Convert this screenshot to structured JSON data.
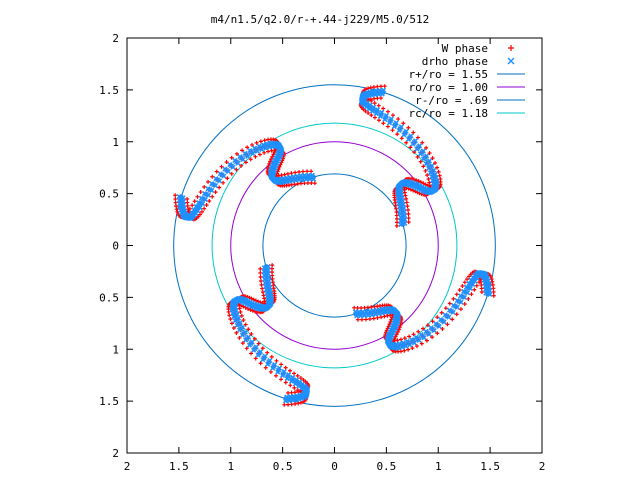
{
  "chart_data": {
    "type": "scatter",
    "title": "m4/n1.5/q2.0/r-+.44-j229/M5.0/512",
    "xlabel": "",
    "ylabel": "",
    "xlim": [
      -2,
      2
    ],
    "ylim": [
      -2,
      2
    ],
    "x_tick_values": [
      -2,
      -1.5,
      -1,
      -0.5,
      0,
      0.5,
      1,
      1.5,
      2
    ],
    "x_tick_labels": [
      "2",
      "1.5",
      "1",
      "0.5",
      "0",
      "0.5",
      "1",
      "1.5",
      "2"
    ],
    "y_tick_values": [
      2,
      1.5,
      1,
      0.5,
      0,
      -0.5,
      -1,
      -1.5,
      -2
    ],
    "y_tick_labels": [
      "2",
      "1.5",
      "1",
      "0.5",
      "0",
      "0.5",
      "1",
      "1.5",
      "2"
    ],
    "grid": false,
    "legend_position": "top-right",
    "series": [
      {
        "name": "W phase",
        "kind": "points",
        "marker": "+",
        "color": "#ff0000",
        "pattern": {
          "arms": 4,
          "start_angle_deg": 45,
          "r_in": 0.69,
          "r_out": 1.55,
          "twist_deg": 55,
          "wiggle_deg": 15,
          "width": 0.06
        }
      },
      {
        "name": "drho phase",
        "kind": "points",
        "marker": "x",
        "color": "#1e90ff",
        "pattern": {
          "arms": 4,
          "start_angle_deg": 45,
          "r_in": 0.69,
          "r_out": 1.55,
          "twist_deg": 55,
          "wiggle_deg": 15,
          "width": 0.02
        }
      },
      {
        "name": "r+/ro = 1.55",
        "kind": "circle",
        "radius": 1.55,
        "color": "#0070c0"
      },
      {
        "name": "ro/ro = 1.00",
        "kind": "circle",
        "radius": 1.0,
        "color": "#9400d3"
      },
      {
        "name": "r-/ro = .69",
        "kind": "circle",
        "radius": 0.69,
        "color": "#0070c0"
      },
      {
        "name": "rc/ro = 1.18",
        "kind": "circle",
        "radius": 1.18,
        "color": "#00c8c8"
      }
    ]
  }
}
